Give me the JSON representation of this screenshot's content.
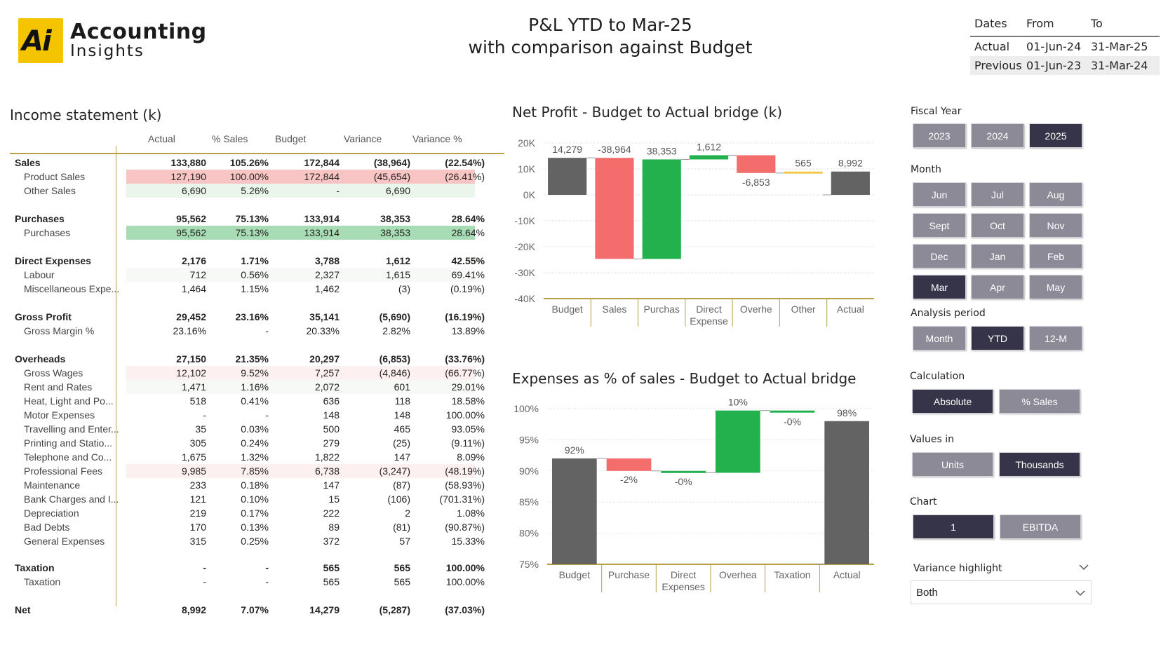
{
  "logo": {
    "mark": "Ai",
    "line1": "Accounting",
    "line2": "Insights"
  },
  "title": {
    "line1": "P&L YTD to Mar-25",
    "line2": "with comparison against Budget"
  },
  "dates": {
    "headers": [
      "Dates",
      "From",
      "To"
    ],
    "rows": [
      {
        "label": "Actual",
        "from": "01-Jun-24",
        "to": "31-Mar-25"
      },
      {
        "label": "Previous",
        "from": "01-Jun-23",
        "to": "31-Mar-24"
      }
    ]
  },
  "income": {
    "title": "Income statement (k)",
    "columns": [
      "Actual",
      "% Sales",
      "Budget",
      "Variance",
      "Variance %"
    ],
    "rows": [
      {
        "label": "Sales",
        "type": "bold",
        "values": [
          "133,880",
          "105.26%",
          "172,844",
          "(38,964)",
          "(22.54%)"
        ]
      },
      {
        "label": "Product Sales",
        "type": "sub",
        "highlight": "red",
        "values": [
          "127,190",
          "100.00%",
          "172,844",
          "(45,654)",
          "(26.41%)"
        ]
      },
      {
        "label": "Other Sales",
        "type": "sub",
        "highlight": "lightgreen",
        "values": [
          "6,690",
          "5.26%",
          "-",
          "6,690",
          ""
        ]
      },
      {
        "label": "Purchases",
        "type": "bold",
        "values": [
          "95,562",
          "75.13%",
          "133,914",
          "38,353",
          "28.64%"
        ]
      },
      {
        "label": "Purchases",
        "type": "sub",
        "highlight": "green",
        "values": [
          "95,562",
          "75.13%",
          "133,914",
          "38,353",
          "28.64%"
        ]
      },
      {
        "label": "Direct Expenses",
        "type": "bold",
        "values": [
          "2,176",
          "1.71%",
          "3,788",
          "1,612",
          "42.55%"
        ]
      },
      {
        "label": "Labour",
        "type": "sub",
        "highlight": "faint",
        "values": [
          "712",
          "0.56%",
          "2,327",
          "1,615",
          "69.41%"
        ]
      },
      {
        "label": "Miscellaneous Expe...",
        "type": "sub",
        "values": [
          "1,464",
          "1.15%",
          "1,462",
          "(3)",
          "(0.19%)"
        ]
      },
      {
        "label": "Gross Profit",
        "type": "bold",
        "values": [
          "29,452",
          "23.16%",
          "35,141",
          "(5,690)",
          "(16.19%)"
        ]
      },
      {
        "label": "Gross Margin %",
        "type": "sub",
        "values": [
          "23.16%",
          "-",
          "20.33%",
          "2.82%",
          "13.89%"
        ]
      },
      {
        "label": "Overheads",
        "type": "bold",
        "values": [
          "27,150",
          "21.35%",
          "20,297",
          "(6,853)",
          "(33.76%)"
        ]
      },
      {
        "label": "Gross Wages",
        "type": "sub",
        "highlight": "faintred",
        "values": [
          "12,102",
          "9.52%",
          "7,257",
          "(4,846)",
          "(66.77%)"
        ]
      },
      {
        "label": "Rent and Rates",
        "type": "sub",
        "highlight": "faint",
        "values": [
          "1,471",
          "1.16%",
          "2,072",
          "601",
          "29.01%"
        ]
      },
      {
        "label": "Heat, Light and Po...",
        "type": "sub",
        "values": [
          "518",
          "0.41%",
          "636",
          "118",
          "18.58%"
        ]
      },
      {
        "label": "Motor Expenses",
        "type": "sub",
        "values": [
          "-",
          "-",
          "148",
          "148",
          "100.00%"
        ]
      },
      {
        "label": "Travelling and Enter...",
        "type": "sub",
        "values": [
          "35",
          "0.03%",
          "500",
          "465",
          "93.05%"
        ]
      },
      {
        "label": "Printing and Statio...",
        "type": "sub",
        "values": [
          "305",
          "0.24%",
          "279",
          "(25)",
          "(9.11%)"
        ]
      },
      {
        "label": "Telephone and Co...",
        "type": "sub",
        "values": [
          "1,675",
          "1.32%",
          "1,822",
          "147",
          "8.09%"
        ]
      },
      {
        "label": "Professional Fees",
        "type": "sub",
        "highlight": "faintred",
        "values": [
          "9,985",
          "7.85%",
          "6,738",
          "(3,247)",
          "(48.19%)"
        ]
      },
      {
        "label": "Maintenance",
        "type": "sub",
        "values": [
          "233",
          "0.18%",
          "147",
          "(87)",
          "(58.93%)"
        ]
      },
      {
        "label": "Bank Charges and I...",
        "type": "sub",
        "values": [
          "121",
          "0.10%",
          "15",
          "(106)",
          "(701.31%)"
        ]
      },
      {
        "label": "Depreciation",
        "type": "sub",
        "values": [
          "219",
          "0.17%",
          "222",
          "2",
          "1.08%"
        ]
      },
      {
        "label": "Bad Debts",
        "type": "sub",
        "values": [
          "170",
          "0.13%",
          "89",
          "(81)",
          "(90.87%)"
        ]
      },
      {
        "label": "General Expenses",
        "type": "sub",
        "values": [
          "315",
          "0.25%",
          "372",
          "57",
          "15.33%"
        ]
      },
      {
        "label": "Taxation",
        "type": "bold",
        "values": [
          "-",
          "-",
          "565",
          "565",
          "100.00%"
        ]
      },
      {
        "label": "Taxation",
        "type": "sub",
        "values": [
          "-",
          "-",
          "565",
          "565",
          "100.00%"
        ]
      },
      {
        "label": "Net",
        "type": "bold",
        "values": [
          "8,992",
          "7.07%",
          "14,279",
          "(5,287)",
          "(37.03%)"
        ]
      }
    ]
  },
  "colors": {
    "gray": "#636363",
    "red": "#f46d6d",
    "green": "#23b14d",
    "gold": "#f2c94c",
    "axis": "#b8a044",
    "slicer": "#8c8a97",
    "slicer_selected": "#363448"
  },
  "chart_data": [
    {
      "type": "waterfall",
      "title": "Net Profit - Budget to Actual bridge (k)",
      "categories": [
        "Budget",
        "Sales",
        "Purchas",
        "Direct\nExpense",
        "Overhe",
        "Other",
        "Actual"
      ],
      "values": [
        14279,
        -38964,
        38353,
        1612,
        -6853,
        565,
        8992
      ],
      "labels": [
        "14,279",
        "-38,964",
        "38,353",
        "1,612",
        "-6,853",
        "565",
        "8,992"
      ],
      "kinds": [
        "total",
        "delta",
        "delta",
        "delta",
        "delta",
        "delta",
        "total"
      ],
      "yticks": [
        "20K",
        "10K",
        "0K",
        "-10K",
        "-20K",
        "-30K",
        "-40K"
      ],
      "ylim": [
        -40000,
        20000
      ]
    },
    {
      "type": "waterfall",
      "title": "Expenses as % of sales - Budget to Actual bridge",
      "categories": [
        "Budget",
        "Purchase",
        "Direct\nExpenses",
        "Overhea",
        "Taxation",
        "Actual"
      ],
      "values": [
        92,
        -2,
        -0.3,
        10,
        -0.3,
        98
      ],
      "labels": [
        "92%",
        "-2%",
        "-0%",
        "10%",
        "-0%",
        "98%"
      ],
      "kinds": [
        "total",
        "delta",
        "delta",
        "delta",
        "delta",
        "total"
      ],
      "yticks": [
        "100%",
        "95%",
        "90%",
        "85%",
        "80%",
        "75%"
      ],
      "ylim": [
        75,
        100
      ]
    }
  ],
  "slicers": {
    "fiscal_year": {
      "title": "Fiscal Year",
      "options": [
        "2023",
        "2024",
        "2025"
      ],
      "selected": "2025"
    },
    "month": {
      "title": "Month",
      "options": [
        "Jun",
        "Jul",
        "Aug",
        "Sept",
        "Oct",
        "Nov",
        "Dec",
        "Jan",
        "Feb",
        "Mar",
        "Apr",
        "May"
      ],
      "selected": "Mar"
    },
    "analysis_period": {
      "title": "Analysis period",
      "options": [
        "Month",
        "YTD",
        "12-M"
      ],
      "selected": "YTD"
    },
    "calculation": {
      "title": "Calculation",
      "options": [
        "Absolute",
        "% Sales"
      ],
      "selected": "Absolute"
    },
    "values_in": {
      "title": "Values in",
      "options": [
        "Units",
        "Thousands"
      ],
      "selected": "Thousands"
    },
    "chart": {
      "title": "Chart",
      "options": [
        "1",
        "EBITDA"
      ],
      "selected": "1"
    },
    "variance_highlight": {
      "title": "Variance highlight",
      "value": "Both"
    }
  }
}
